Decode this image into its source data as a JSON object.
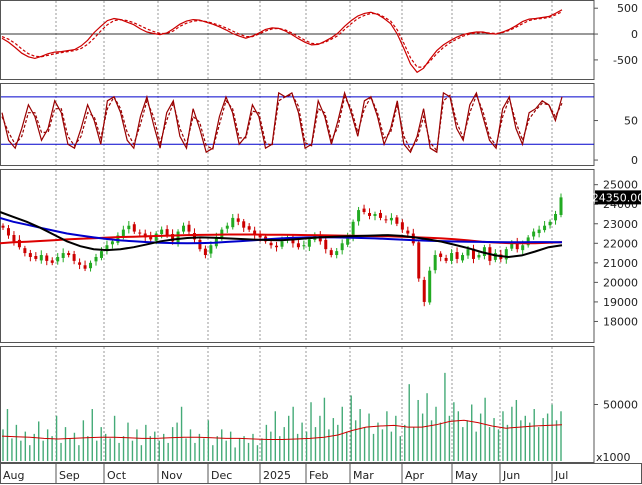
{
  "chart_data": [
    {
      "panel": "macd",
      "type": "line",
      "ylim": [
        -850,
        620
      ],
      "yticks": [
        {
          "value": 500,
          "label": "500"
        },
        {
          "value": 0,
          "label": "0"
        },
        {
          "value": -500,
          "label": "-500"
        }
      ],
      "reference_lines": [
        0
      ],
      "series": [
        {
          "role": "macd",
          "color": "#cc0000",
          "style": "solid",
          "values": [
            -80,
            -160,
            -260,
            -370,
            -440,
            -470,
            -430,
            -380,
            -350,
            -340,
            -320,
            -300,
            -230,
            -120,
            30,
            150,
            260,
            300,
            280,
            230,
            180,
            100,
            40,
            10,
            -10,
            20,
            100,
            190,
            250,
            280,
            270,
            230,
            190,
            140,
            80,
            10,
            -40,
            -80,
            -40,
            20,
            90,
            120,
            110,
            60,
            -10,
            -90,
            -160,
            -210,
            -200,
            -140,
            -70,
            20,
            150,
            260,
            350,
            400,
            420,
            380,
            300,
            200,
            0,
            -280,
            -580,
            -740,
            -660,
            -480,
            -320,
            -210,
            -130,
            -60,
            -10,
            20,
            40,
            40,
            10,
            0,
            40,
            90,
            160,
            240,
            290,
            300,
            320,
            340,
            400,
            470
          ]
        },
        {
          "role": "signal",
          "color": "#cc0000",
          "style": "dashed",
          "values": [
            -50,
            -100,
            -180,
            -290,
            -380,
            -430,
            -440,
            -410,
            -380,
            -360,
            -340,
            -320,
            -280,
            -200,
            -80,
            60,
            180,
            260,
            280,
            260,
            220,
            160,
            100,
            50,
            10,
            10,
            60,
            150,
            210,
            250,
            260,
            240,
            210,
            170,
            120,
            60,
            0,
            -50,
            -50,
            0,
            60,
            100,
            110,
            80,
            20,
            -50,
            -120,
            -180,
            -190,
            -160,
            -100,
            -30,
            90,
            200,
            300,
            360,
            400,
            390,
            330,
            250,
            80,
            -180,
            -460,
            -640,
            -640,
            -520,
            -380,
            -260,
            -170,
            -100,
            -40,
            0,
            20,
            30,
            20,
            10,
            30,
            70,
            130,
            200,
            260,
            290,
            300,
            320,
            370,
            430
          ]
        }
      ]
    },
    {
      "panel": "stochastic",
      "type": "line",
      "ylim": [
        -5,
        95
      ],
      "yticks": [
        {
          "value": 50,
          "label": "50"
        },
        {
          "value": 0,
          "label": "0"
        }
      ],
      "reference_lines": [
        80,
        20
      ],
      "series": [
        {
          "role": "%K",
          "color": "#990000",
          "style": "solid",
          "values": [
            60,
            25,
            15,
            40,
            70,
            55,
            25,
            40,
            75,
            60,
            20,
            15,
            40,
            70,
            50,
            20,
            75,
            80,
            60,
            25,
            15,
            55,
            80,
            45,
            15,
            60,
            75,
            30,
            15,
            65,
            40,
            10,
            15,
            55,
            80,
            60,
            20,
            30,
            70,
            55,
            15,
            20,
            85,
            80,
            85,
            60,
            15,
            20,
            75,
            55,
            20,
            50,
            85,
            60,
            30,
            75,
            80,
            55,
            20,
            40,
            75,
            20,
            10,
            30,
            65,
            15,
            10,
            85,
            80,
            40,
            25,
            70,
            85,
            55,
            25,
            15,
            65,
            80,
            40,
            20,
            60,
            65,
            75,
            70,
            50,
            80
          ]
        },
        {
          "role": "%D",
          "color": "#990000",
          "style": "dashed",
          "values": [
            55,
            35,
            20,
            30,
            60,
            60,
            35,
            35,
            65,
            65,
            30,
            18,
            30,
            60,
            55,
            28,
            65,
            80,
            65,
            35,
            20,
            45,
            75,
            55,
            22,
            50,
            72,
            40,
            20,
            55,
            48,
            18,
            14,
            45,
            75,
            65,
            28,
            28,
            62,
            60,
            22,
            18,
            75,
            80,
            83,
            68,
            22,
            18,
            65,
            60,
            25,
            42,
            80,
            65,
            35,
            65,
            80,
            60,
            28,
            35,
            70,
            30,
            13,
            25,
            55,
            22,
            12,
            75,
            82,
            48,
            28,
            60,
            82,
            62,
            30,
            18,
            55,
            78,
            48,
            25,
            52,
            63,
            72,
            70,
            55,
            72
          ]
        }
      ]
    },
    {
      "panel": "price",
      "type": "candlestick",
      "ylim": [
        17000,
        25700
      ],
      "yticks": [
        {
          "value": 25000,
          "label": "25000"
        },
        {
          "value": 24000,
          "label": "24000"
        },
        {
          "value": 23000,
          "label": "23000"
        },
        {
          "value": 22000,
          "label": "22000"
        },
        {
          "value": 21000,
          "label": "21000"
        },
        {
          "value": 20000,
          "label": "20000"
        },
        {
          "value": 19000,
          "label": "19000"
        },
        {
          "value": 18000,
          "label": "18000"
        }
      ],
      "last_price_label": "24350.00",
      "closes": [
        22800,
        22400,
        22100,
        21800,
        21500,
        21300,
        21200,
        21400,
        21100,
        21000,
        21300,
        21500,
        21400,
        21100,
        20900,
        20700,
        21000,
        21300,
        21600,
        21900,
        22100,
        22400,
        22700,
        22900,
        22600,
        22500,
        22300,
        22200,
        22500,
        22700,
        22400,
        22100,
        22600,
        22900,
        22600,
        22200,
        21700,
        21400,
        21900,
        22300,
        22700,
        22900,
        23300,
        23100,
        22800,
        22700,
        22400,
        22300,
        22100,
        21900,
        21800,
        22100,
        22300,
        22000,
        21800,
        21900,
        22200,
        22400,
        22100,
        21700,
        21400,
        21600,
        22000,
        22300,
        23100,
        23700,
        23600,
        23400,
        23500,
        23300,
        23200,
        23300,
        23000,
        22700,
        22500,
        22000,
        20200,
        19000,
        20600,
        21400,
        21300,
        21100,
        21500,
        21200,
        21400,
        21700,
        21200,
        21400,
        21800,
        21100,
        21500,
        21200,
        21700,
        22000,
        21700,
        21900,
        22300,
        22600,
        22700,
        22900,
        23100,
        23500,
        24350
      ],
      "series": [
        {
          "role": "ma-red",
          "color": "#dd0000",
          "values": [
            22000,
            22050,
            22080,
            22120,
            22160,
            22200,
            22230,
            22260,
            22290,
            22320,
            22340,
            22360,
            22380,
            22400,
            22420,
            22430,
            22440,
            22450,
            22450,
            22450,
            22440,
            22440,
            22430,
            22420,
            22410,
            22400,
            22390,
            22380,
            22370,
            22360,
            22340,
            22310,
            22280,
            22250,
            22210,
            22150,
            22080,
            22040,
            22010,
            22000,
            22000,
            22030,
            22060
          ]
        },
        {
          "role": "ma-blue",
          "color": "#0000cc",
          "values": [
            23300,
            23100,
            22950,
            22800,
            22650,
            22500,
            22400,
            22300,
            22220,
            22150,
            22100,
            22060,
            22030,
            22010,
            22000,
            22010,
            22030,
            22070,
            22110,
            22160,
            22210,
            22250,
            22280,
            22300,
            22310,
            22300,
            22290,
            22270,
            22250,
            22220,
            22190,
            22160,
            22130,
            22110,
            22090,
            22080,
            22070,
            22060,
            22050,
            22050,
            22060,
            22060,
            22050
          ]
        },
        {
          "role": "ma-black",
          "color": "#000000",
          "values": [
            23600,
            23350,
            23100,
            22800,
            22450,
            22100,
            21850,
            21700,
            21650,
            21700,
            21800,
            21950,
            22100,
            22200,
            22270,
            22300,
            22280,
            22250,
            22220,
            22190,
            22170,
            22160,
            22200,
            22260,
            22310,
            22340,
            22360,
            22380,
            22400,
            22420,
            22380,
            22300,
            22200,
            22080,
            21920,
            21750,
            21550,
            21380,
            21300,
            21380,
            21580,
            21800,
            21900
          ]
        }
      ]
    },
    {
      "panel": "volume",
      "type": "bar",
      "ylim": [
        0,
        100000
      ],
      "yticks": [
        {
          "value": 50000,
          "label": "50000"
        }
      ],
      "multiplier_label": "x1000",
      "bar_color": "#44aa77",
      "values": [
        28000,
        46000,
        20000,
        32000,
        18000,
        26000,
        14000,
        24000,
        35000,
        18000,
        28000,
        22000,
        40000,
        16000,
        30000,
        20000,
        25000,
        14000,
        36000,
        22000,
        46000,
        18000,
        30000,
        24000,
        20000,
        40000,
        16000,
        22000,
        34000,
        18000,
        28000,
        14000,
        32000,
        22000,
        26000,
        18000,
        24000,
        16000,
        30000,
        34000,
        48000,
        20000,
        28000,
        16000,
        24000,
        20000,
        36000,
        14000,
        22000,
        28000,
        18000,
        26000,
        12000,
        20000,
        22000,
        16000,
        24000,
        14000,
        20000,
        32000,
        26000,
        44000,
        22000,
        30000,
        40000,
        48000,
        24000,
        34000,
        26000,
        52000,
        30000,
        40000,
        56000,
        28000,
        38000,
        32000,
        48000,
        26000,
        58000,
        36000,
        46000,
        30000,
        42000,
        24000,
        34000,
        28000,
        44000,
        26000,
        40000,
        22000,
        32000,
        68000,
        30000,
        54000,
        42000,
        60000,
        36000,
        48000,
        34000,
        78000,
        40000,
        52000,
        44000,
        30000,
        36000,
        50000,
        26000,
        42000,
        56000,
        30000,
        38000,
        28000,
        44000,
        32000,
        48000,
        54000,
        36000,
        40000,
        34000,
        46000,
        30000,
        38000,
        42000,
        50000,
        36000,
        44000
      ],
      "ma": {
        "color": "#cc0000",
        "values": [
          22000,
          21500,
          21000,
          20000,
          19500,
          20000,
          20500,
          21000,
          21000,
          20500,
          20000,
          20000,
          20500,
          21000,
          21000,
          20500,
          20000,
          20000,
          19500,
          19000,
          19000,
          19500,
          20000,
          21000,
          23000,
          27000,
          30000,
          31000,
          31500,
          30000,
          30000,
          32000,
          35000,
          36000,
          34000,
          31000,
          29000,
          30000,
          31000,
          31500,
          32000
        ]
      }
    }
  ],
  "x_axis": {
    "labels": [
      "Aug",
      "Sep",
      "Oct",
      "Nov",
      "Dec",
      "2025",
      "Feb",
      "Mar",
      "Apr",
      "May",
      "Jun",
      "Jul"
    ]
  }
}
